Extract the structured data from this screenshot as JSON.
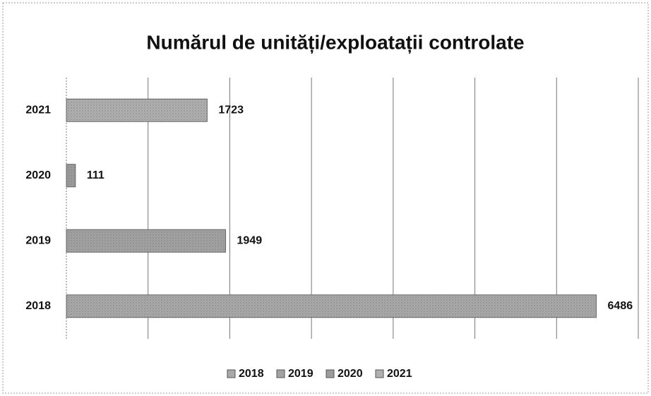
{
  "chart_data": {
    "type": "bar",
    "orientation": "horizontal",
    "title": "Numărul de unități/exploatații controlate",
    "categories": [
      "2018",
      "2019",
      "2020",
      "2021"
    ],
    "values": [
      6486,
      1949,
      111,
      1723
    ],
    "colors": [
      "#a9a9a9",
      "#a3a3a3",
      "#9c9c9c",
      "#b0b0b0"
    ],
    "xlim": [
      0,
      7000
    ],
    "xticks": [
      0,
      1000,
      2000,
      3000,
      4000,
      5000,
      6000,
      7000
    ],
    "grid": true,
    "legend": "bottom"
  }
}
